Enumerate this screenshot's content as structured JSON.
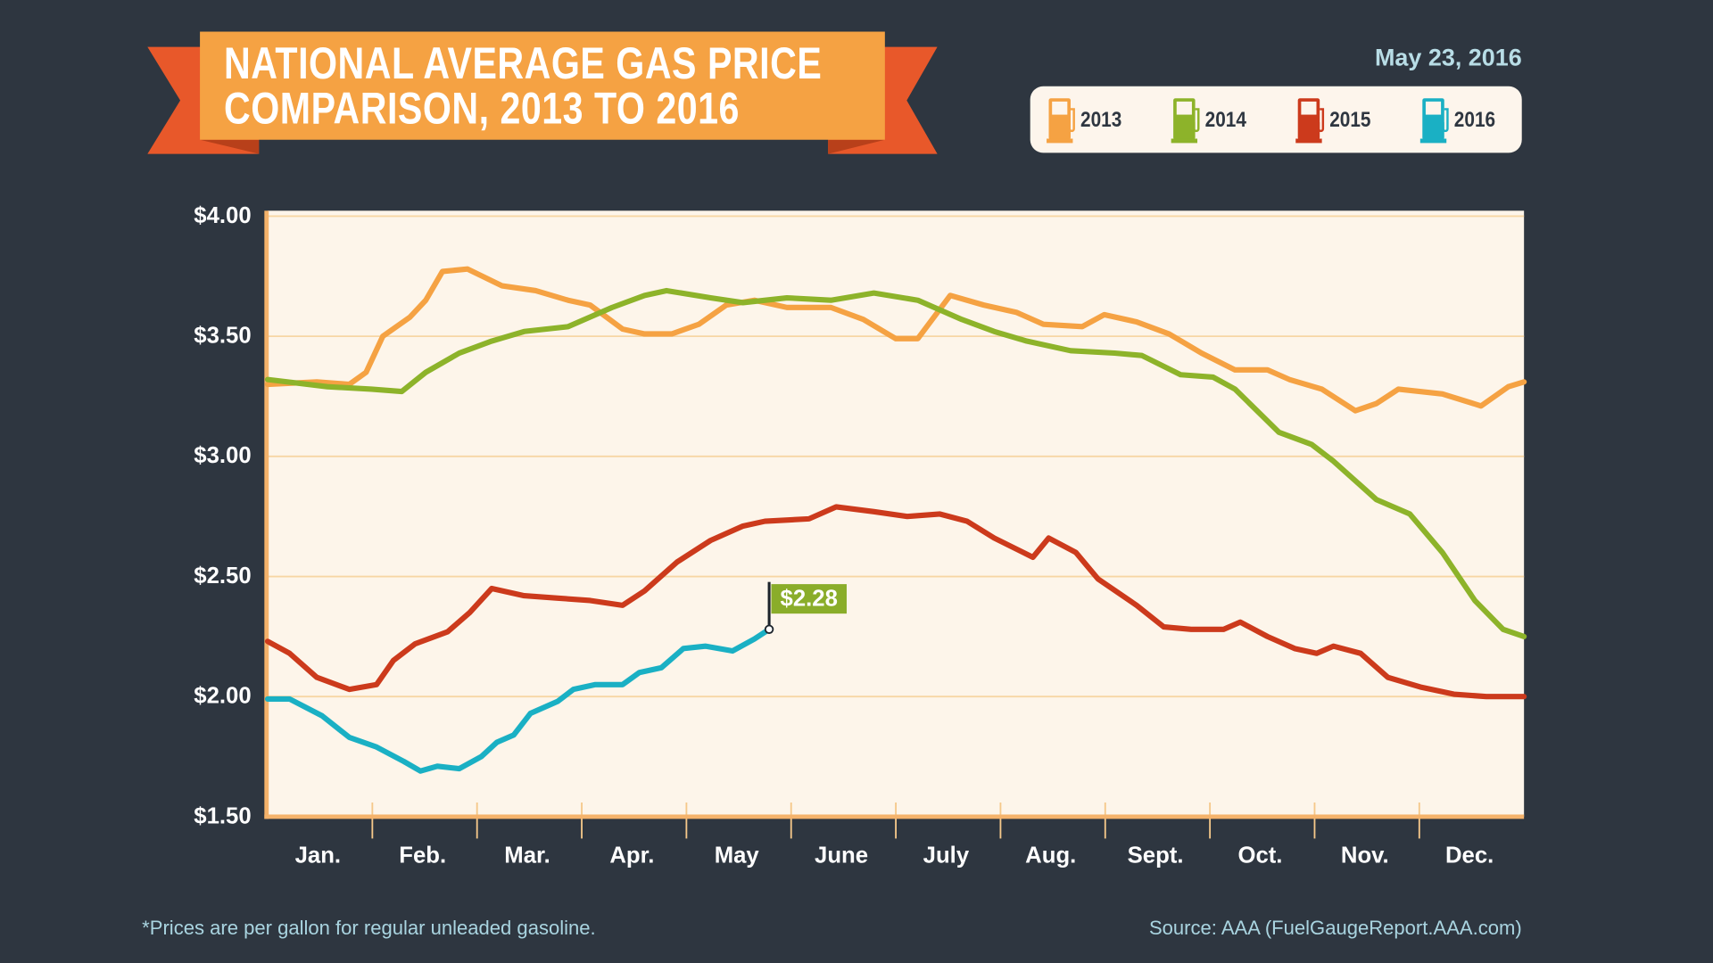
{
  "header": {
    "title_line1": "NATIONAL AVERAGE GAS PRICE",
    "title_line2": "COMPARISON, 2013 TO 2016",
    "date": "May 23, 2016"
  },
  "legend": {
    "icon": "gas-pump-icon",
    "items": [
      {
        "label": "2013",
        "color": "#f5a243"
      },
      {
        "label": "2014",
        "color": "#8db32a"
      },
      {
        "label": "2015",
        "color": "#cc3a1c"
      },
      {
        "label": "2016",
        "color": "#1ab0c4"
      }
    ]
  },
  "footer": {
    "note": "*Prices are per gallon for regular unleaded gasoline.",
    "source": "Source: AAA (FuelGaugeReport.AAA.com)"
  },
  "chart_data": {
    "type": "line",
    "title": "NATIONAL AVERAGE GAS PRICE COMPARISON, 2013 TO 2016",
    "xlabel": "",
    "ylabel": "",
    "x_unit": "months elapsed since Jan. 1",
    "xlim": [
      0,
      12
    ],
    "ylim": [
      1.5,
      4.0
    ],
    "yticks": [
      1.5,
      2.0,
      2.5,
      3.0,
      3.5,
      4.0
    ],
    "ytick_labels": [
      "$1.50",
      "$2.00",
      "$2.50",
      "$3.00",
      "$3.50",
      "$4.00"
    ],
    "xtick_labels": [
      "Jan.",
      "Feb.",
      "Mar.",
      "Apr.",
      "May",
      "June",
      "July",
      "Aug.",
      "Sept.",
      "Oct.",
      "Nov.",
      "Dec."
    ],
    "grid": "horizontal",
    "legend_position": "top-right",
    "annotation": {
      "label": "$2.28",
      "series": "2016",
      "x": 4.79,
      "y": 2.28,
      "color": "#8aad2a"
    },
    "series": [
      {
        "name": "2013",
        "color": "#f5a243",
        "x": [
          0,
          0.47,
          0.78,
          0.94,
          1.1,
          1.36,
          1.51,
          1.67,
          1.91,
          2.24,
          2.56,
          2.87,
          3.08,
          3.39,
          3.6,
          3.86,
          4.12,
          4.38,
          4.65,
          4.96,
          5.38,
          5.69,
          6.0,
          6.21,
          6.52,
          6.84,
          7.15,
          7.41,
          7.78,
          7.99,
          8.3,
          8.61,
          8.92,
          9.24,
          9.55,
          9.76,
          10.07,
          10.39,
          10.59,
          10.8,
          11.22,
          11.59,
          11.85,
          12.0
        ],
        "y": [
          3.3,
          3.31,
          3.3,
          3.35,
          3.5,
          3.58,
          3.65,
          3.77,
          3.78,
          3.71,
          3.69,
          3.65,
          3.63,
          3.53,
          3.51,
          3.51,
          3.55,
          3.63,
          3.65,
          3.62,
          3.62,
          3.57,
          3.49,
          3.49,
          3.67,
          3.63,
          3.6,
          3.55,
          3.54,
          3.59,
          3.56,
          3.51,
          3.43,
          3.36,
          3.36,
          3.32,
          3.28,
          3.19,
          3.22,
          3.28,
          3.26,
          3.21,
          3.29,
          3.31
        ]
      },
      {
        "name": "2014",
        "color": "#8db32a",
        "x": [
          0,
          0.57,
          0.99,
          1.28,
          1.51,
          1.83,
          2.14,
          2.45,
          2.87,
          3.29,
          3.6,
          3.81,
          4.23,
          4.54,
          4.96,
          5.38,
          5.79,
          6.21,
          6.63,
          6.94,
          7.25,
          7.67,
          8.09,
          8.35,
          8.72,
          9.03,
          9.24,
          9.66,
          9.97,
          10.18,
          10.59,
          10.91,
          11.22,
          11.53,
          11.8,
          12.0
        ],
        "y": [
          3.32,
          3.29,
          3.28,
          3.27,
          3.35,
          3.43,
          3.48,
          3.52,
          3.54,
          3.62,
          3.67,
          3.69,
          3.66,
          3.64,
          3.66,
          3.65,
          3.68,
          3.65,
          3.57,
          3.52,
          3.48,
          3.44,
          3.43,
          3.42,
          3.34,
          3.33,
          3.28,
          3.1,
          3.05,
          2.98,
          2.82,
          2.76,
          2.6,
          2.4,
          2.28,
          2.25
        ]
      },
      {
        "name": "2015",
        "color": "#cc3a1c",
        "x": [
          0,
          0.21,
          0.47,
          0.78,
          1.04,
          1.2,
          1.41,
          1.72,
          1.93,
          2.14,
          2.45,
          2.77,
          3.08,
          3.39,
          3.6,
          3.91,
          4.23,
          4.54,
          4.75,
          5.17,
          5.43,
          5.79,
          6.11,
          6.42,
          6.68,
          6.94,
          7.31,
          7.46,
          7.72,
          7.93,
          8.3,
          8.56,
          8.82,
          9.13,
          9.29,
          9.55,
          9.81,
          10.02,
          10.18,
          10.44,
          10.7,
          11.01,
          11.33,
          11.64,
          12.0
        ],
        "y": [
          2.23,
          2.18,
          2.08,
          2.03,
          2.05,
          2.15,
          2.22,
          2.27,
          2.35,
          2.45,
          2.42,
          2.41,
          2.4,
          2.38,
          2.44,
          2.56,
          2.65,
          2.71,
          2.73,
          2.74,
          2.79,
          2.77,
          2.75,
          2.76,
          2.73,
          2.66,
          2.58,
          2.66,
          2.6,
          2.49,
          2.38,
          2.29,
          2.28,
          2.28,
          2.31,
          2.25,
          2.2,
          2.18,
          2.21,
          2.18,
          2.08,
          2.04,
          2.01,
          2.0,
          2.0
        ]
      },
      {
        "name": "2016",
        "color": "#1ab0c4",
        "x": [
          0,
          0.21,
          0.52,
          0.78,
          1.04,
          1.3,
          1.46,
          1.62,
          1.83,
          2.04,
          2.19,
          2.35,
          2.51,
          2.77,
          2.92,
          3.13,
          3.39,
          3.55,
          3.76,
          3.97,
          4.18,
          4.44,
          4.65,
          4.79
        ],
        "y": [
          1.99,
          1.99,
          1.92,
          1.83,
          1.79,
          1.73,
          1.69,
          1.71,
          1.7,
          1.75,
          1.81,
          1.84,
          1.93,
          1.98,
          2.03,
          2.05,
          2.05,
          2.1,
          2.12,
          2.2,
          2.21,
          2.19,
          2.24,
          2.28
        ]
      }
    ]
  }
}
